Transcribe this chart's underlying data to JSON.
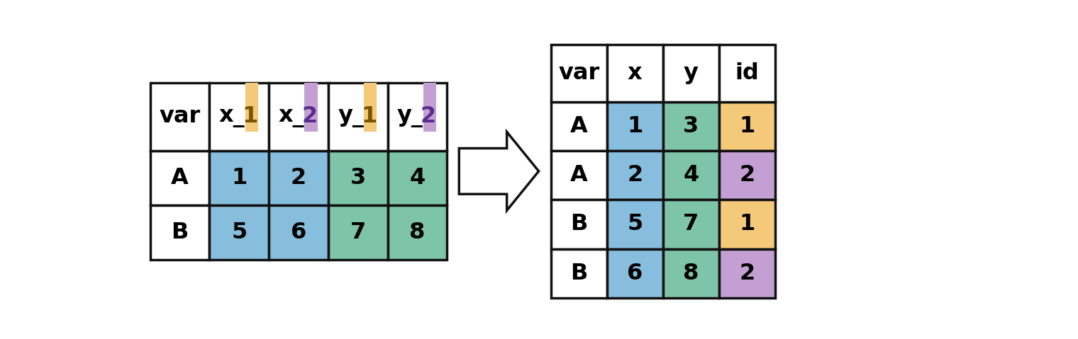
{
  "left_table": {
    "headers": [
      "var",
      "x_1",
      "x_2",
      "y_1",
      "y_2"
    ],
    "rows": [
      [
        "A",
        "1",
        "2",
        "3",
        "4"
      ],
      [
        "B",
        "5",
        "6",
        "7",
        "8"
      ]
    ],
    "header_stripe_colors": [
      null,
      "#F5C97A",
      "#C49FD4",
      "#F5C97A",
      "#C49FD4"
    ],
    "cell_colors": [
      [
        "white",
        "#87BEDD",
        "#87BEDD",
        "#7DC4A8",
        "#7DC4A8"
      ],
      [
        "white",
        "#87BEDD",
        "#87BEDD",
        "#7DC4A8",
        "#7DC4A8"
      ]
    ]
  },
  "right_table": {
    "headers": [
      "var",
      "x",
      "y",
      "id"
    ],
    "rows": [
      [
        "A",
        "1",
        "3",
        "1"
      ],
      [
        "A",
        "2",
        "4",
        "2"
      ],
      [
        "B",
        "5",
        "7",
        "1"
      ],
      [
        "B",
        "6",
        "8",
        "2"
      ]
    ],
    "header_colors": [
      "white",
      "white",
      "white",
      "white"
    ],
    "cell_colors": [
      [
        "white",
        "#87BEDD",
        "#7DC4A8",
        "#F5C97A"
      ],
      [
        "white",
        "#87BEDD",
        "#7DC4A8",
        "#C49FD4"
      ],
      [
        "white",
        "#87BEDD",
        "#7DC4A8",
        "#F5C97A"
      ],
      [
        "white",
        "#87BEDD",
        "#7DC4A8",
        "#C49FD4"
      ]
    ]
  },
  "bg_color": "#ffffff",
  "font_size": 23,
  "line_color": "#111111",
  "line_width": 2.5,
  "arrow_color": "#111111",
  "stripe_num_color_orange": "#7A5500",
  "stripe_num_color_purple": "#5B2D8E"
}
